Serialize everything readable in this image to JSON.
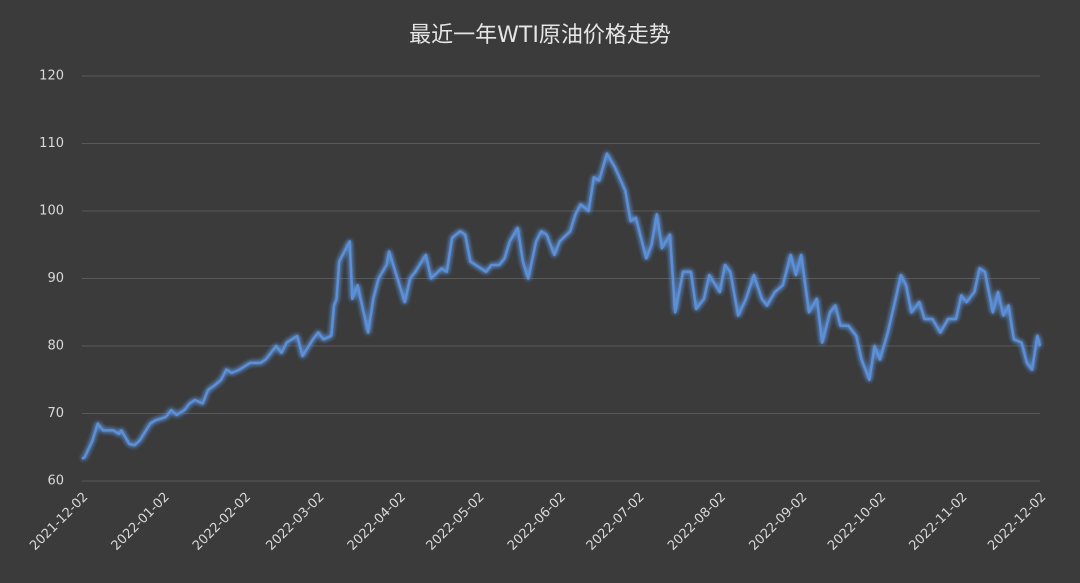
{
  "chart_data": {
    "type": "line",
    "title": "最近一年WTI原油价格走势",
    "x": [
      "2021-12-02",
      "2021-12-03",
      "2021-12-06",
      "2021-12-08",
      "2021-12-10",
      "2021-12-14",
      "2021-12-16",
      "2021-12-17",
      "2021-12-20",
      "2021-12-22",
      "2021-12-24",
      "2021-12-28",
      "2021-12-30",
      "2022-01-03",
      "2022-01-05",
      "2022-01-07",
      "2022-01-10",
      "2022-01-12",
      "2022-01-14",
      "2022-01-17",
      "2022-01-19",
      "2022-01-21",
      "2022-01-24",
      "2022-01-26",
      "2022-01-28",
      "2022-01-31",
      "2022-02-02",
      "2022-02-04",
      "2022-02-08",
      "2022-02-10",
      "2022-02-14",
      "2022-02-16",
      "2022-02-18",
      "2022-02-22",
      "2022-02-24",
      "2022-02-28",
      "2022-03-02",
      "2022-03-04",
      "2022-03-07",
      "2022-03-08",
      "2022-03-09",
      "2022-03-10",
      "2022-03-14",
      "2022-03-15",
      "2022-03-17",
      "2022-03-21",
      "2022-03-23",
      "2022-03-25",
      "2022-03-28",
      "2022-03-29",
      "2022-03-31",
      "2022-04-04",
      "2022-04-06",
      "2022-04-08",
      "2022-04-12",
      "2022-04-14",
      "2022-04-18",
      "2022-04-20",
      "2022-04-22",
      "2022-04-25",
      "2022-04-27",
      "2022-04-29",
      "2022-05-03",
      "2022-05-05",
      "2022-05-07",
      "2022-05-10",
      "2022-05-12",
      "2022-05-14",
      "2022-05-17",
      "2022-05-19",
      "2022-05-21",
      "2022-05-24",
      "2022-05-26",
      "2022-05-28",
      "2022-05-31",
      "2022-06-02",
      "2022-06-06",
      "2022-06-08",
      "2022-06-10",
      "2022-06-13",
      "2022-06-15",
      "2022-06-17",
      "2022-06-20",
      "2022-06-23",
      "2022-06-27",
      "2022-06-29",
      "2022-07-01",
      "2022-07-05",
      "2022-07-07",
      "2022-07-09",
      "2022-07-11",
      "2022-07-14",
      "2022-07-16",
      "2022-07-19",
      "2022-07-22",
      "2022-07-24",
      "2022-07-27",
      "2022-07-29",
      "2022-08-02",
      "2022-08-04",
      "2022-08-06",
      "2022-08-09",
      "2022-08-12",
      "2022-08-15",
      "2022-08-18",
      "2022-08-20",
      "2022-08-23",
      "2022-08-26",
      "2022-08-29",
      "2022-08-31",
      "2022-09-02",
      "2022-09-05",
      "2022-09-08",
      "2022-09-10",
      "2022-09-13",
      "2022-09-15",
      "2022-09-17",
      "2022-09-20",
      "2022-09-23",
      "2022-09-25",
      "2022-09-28",
      "2022-09-30",
      "2022-10-02",
      "2022-10-05",
      "2022-10-08",
      "2022-10-10",
      "2022-10-12",
      "2022-10-14",
      "2022-10-17",
      "2022-10-19",
      "2022-10-22",
      "2022-10-25",
      "2022-10-28",
      "2022-10-31",
      "2022-11-02",
      "2022-11-04",
      "2022-11-07",
      "2022-11-09",
      "2022-11-11",
      "2022-11-14",
      "2022-11-16",
      "2022-11-18",
      "2022-11-20",
      "2022-11-22",
      "2022-11-25",
      "2022-11-27",
      "2022-11-29",
      "2022-12-01",
      "2022-12-02"
    ],
    "values": [
      63.3,
      63.5,
      66,
      68.5,
      67.5,
      67.5,
      67,
      67.5,
      65.5,
      65.3,
      66,
      68.5,
      69,
      69.5,
      70.5,
      69.8,
      70.5,
      71.5,
      72,
      71.5,
      73.5,
      74,
      75,
      76.5,
      76,
      76.5,
      77,
      77.5,
      77.5,
      78,
      80,
      79,
      80.5,
      81.5,
      78.5,
      81,
      82,
      81,
      81.5,
      86,
      87,
      92.5,
      95.5,
      87,
      89,
      82,
      87,
      90,
      92,
      94,
      91.5,
      86.5,
      90,
      91,
      93.5,
      90,
      91.5,
      91,
      96,
      97,
      96.5,
      92.5,
      91.5,
      91,
      92,
      92,
      93,
      95.5,
      97.5,
      92.5,
      90,
      95.5,
      97,
      96.5,
      93.5,
      95.5,
      97,
      99.5,
      101,
      100,
      105,
      104.5,
      108.5,
      106.5,
      103,
      98.5,
      99,
      93,
      95,
      99.5,
      94.5,
      96.5,
      85,
      91,
      91,
      85.5,
      87,
      90.5,
      88,
      92,
      91,
      84.5,
      87,
      90.5,
      87,
      86,
      88,
      89,
      93.5,
      90.5,
      93.5,
      85,
      87,
      80.5,
      85,
      86,
      83,
      83,
      81.5,
      78,
      75,
      80,
      78,
      82,
      87,
      90.5,
      89,
      85,
      86.5,
      84,
      84,
      82,
      84,
      84,
      87.5,
      86.5,
      88,
      91.5,
      91,
      85,
      88,
      84.5,
      86,
      81,
      80.5,
      77.5,
      76.5,
      81.5,
      80
    ],
    "color": "#5b8fd6",
    "xlim": [
      "2021-12-02",
      "2022-12-02"
    ],
    "xticks": [
      "2021-12-02",
      "2022-01-02",
      "2022-02-02",
      "2022-03-02",
      "2022-04-02",
      "2022-05-02",
      "2022-06-02",
      "2022-07-02",
      "2022-08-02",
      "2022-09-02",
      "2022-10-02",
      "2022-11-02",
      "2022-12-02"
    ],
    "ylim": [
      60,
      120
    ],
    "yticks": [
      60,
      70,
      80,
      90,
      100,
      110,
      120
    ],
    "grid": true
  }
}
